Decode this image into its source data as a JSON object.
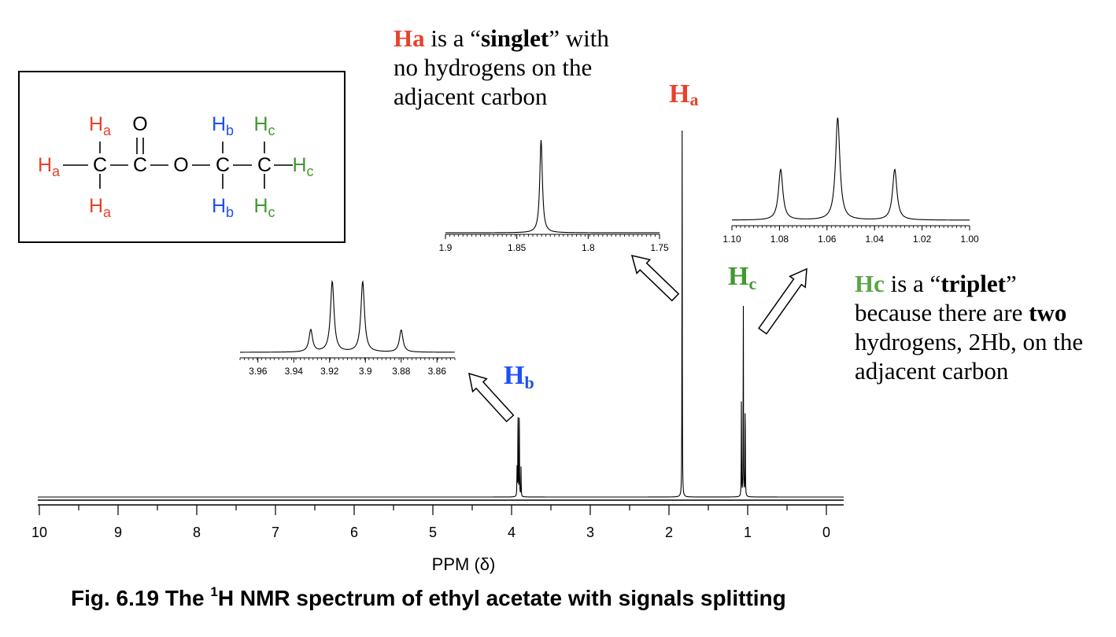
{
  "chart_data": {
    "type": "line",
    "title": "",
    "xlabel": "PPM (δ)",
    "ylabel": "",
    "xlim": [
      10,
      0
    ],
    "x_ticks": [
      "10",
      "9",
      "8",
      "7",
      "6",
      "5",
      "4",
      "3",
      "2",
      "1",
      "0"
    ],
    "series": [
      {
        "peaks": [
          {
            "signal": "Ha",
            "ppm": 1.833,
            "height": 1.0,
            "multiplicity": "singlet"
          },
          {
            "signal": "Hb",
            "ppm": 3.91,
            "height": 0.24,
            "multiplicity": "quartet"
          },
          {
            "signal": "Hc",
            "ppm": 1.055,
            "height": 0.53,
            "multiplicity": "triplet"
          }
        ]
      }
    ],
    "insets": [
      {
        "name": "Hb",
        "xlim": [
          3.97,
          3.85
        ],
        "x_ticks": [
          "3.96",
          "3.94",
          "3.92",
          "3.9",
          "3.88",
          "3.86"
        ],
        "x_tick_values": [
          3.96,
          3.94,
          3.92,
          3.9,
          3.88,
          3.86
        ],
        "peaks": [
          {
            "ppm": 3.9305,
            "height": 0.22
          },
          {
            "ppm": 3.9185,
            "height": 0.7
          },
          {
            "ppm": 3.9015,
            "height": 0.7
          },
          {
            "ppm": 3.88,
            "height": 0.22
          }
        ]
      },
      {
        "name": "Ha",
        "xlim": [
          1.9,
          1.75
        ],
        "x_ticks": [
          "1.9",
          "1.85",
          "1.8",
          "1.75"
        ],
        "x_tick_values": [
          1.9,
          1.85,
          1.8,
          1.75
        ],
        "peaks": [
          {
            "ppm": 1.833,
            "height": 1.0
          }
        ]
      },
      {
        "name": "Hc",
        "xlim": [
          1.1,
          1.0
        ],
        "x_ticks": [
          "1.10",
          "1.08",
          "1.06",
          "1.04",
          "1.02",
          "1.00"
        ],
        "x_tick_values": [
          1.1,
          1.08,
          1.06,
          1.04,
          1.02,
          1.0
        ],
        "peaks": [
          {
            "ppm": 1.0795,
            "height": 0.46
          },
          {
            "ppm": 1.0555,
            "height": 0.93
          },
          {
            "ppm": 1.0315,
            "height": 0.46
          }
        ]
      }
    ]
  },
  "structure": {
    "rows": [
      [
        {
          "t": "H",
          "s": "a",
          "c": "#e8412c"
        },
        {
          "t": "O",
          "c": "#000"
        },
        {
          "t": "H",
          "s": "b",
          "c": "#1f4ff5"
        },
        {
          "t": "H",
          "s": "c",
          "c": "#3f9a2f"
        }
      ],
      [
        {
          "t": "H",
          "s": "a",
          "c": "#e8412c"
        },
        {
          "t": "C",
          "c": "#000"
        },
        {
          "t": "C",
          "c": "#000"
        },
        {
          "t": "O",
          "c": "#000"
        },
        {
          "t": "C",
          "c": "#000"
        },
        {
          "t": "C",
          "c": "#000"
        },
        {
          "t": "H",
          "s": "c",
          "c": "#3f9a2f"
        }
      ],
      [
        {
          "t": "H",
          "s": "a",
          "c": "#e8412c"
        },
        {
          "t": "H",
          "s": "b",
          "c": "#1f4ff5"
        },
        {
          "t": "H",
          "s": "c",
          "c": "#3f9a2f"
        }
      ]
    ]
  },
  "peak_labels": {
    "a": {
      "main": "H",
      "sub": "a",
      "color": "#e8412c"
    },
    "b": {
      "main": "H",
      "sub": "b",
      "color": "#1f4ff5"
    },
    "c": {
      "main": "H",
      "sub": "c",
      "color": "#3f9a2f"
    }
  },
  "notes": {
    "ha": {
      "key": "Ha",
      "key_color": "#e8412c",
      "text1": " is a “",
      "bold1": "singlet",
      "text2": "” with",
      "line2": "no hydrogens on the",
      "line3": "adjacent carbon"
    },
    "hc": {
      "key": "Hc",
      "key_color": "#5aa545",
      "text1": " is a “",
      "bold1": "triplet",
      "text2": "”",
      "line2a": "because there are ",
      "bold2": "two",
      "line3": "hydrogens, 2Hb, on the",
      "line4": "adjacent carbon"
    }
  },
  "caption": {
    "part1": "Fig. 6.19 The ",
    "sup": "1",
    "part2": "H NMR spectrum of ethyl acetate with signals splitting"
  }
}
